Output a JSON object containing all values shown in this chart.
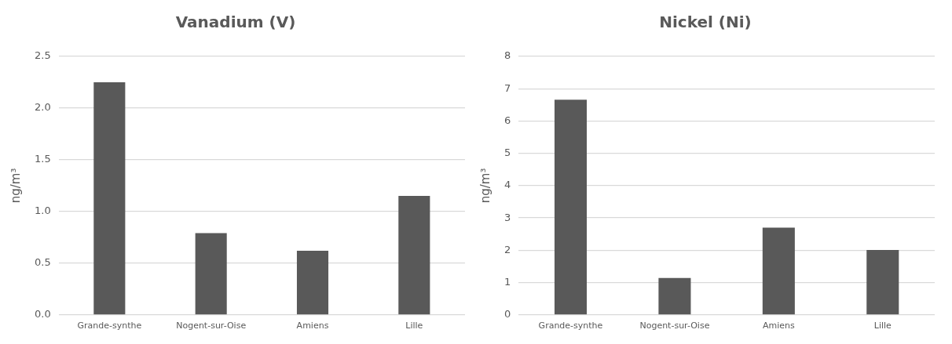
{
  "chart_data": [
    {
      "type": "bar",
      "title": "Vanadium (V)",
      "ylabel": "ng/m³",
      "categories": [
        "Grande-synthe",
        "Nogent-sur-Oise",
        "Amiens",
        "Lille"
      ],
      "values": [
        2.25,
        0.79,
        0.62,
        1.15
      ],
      "color": "#595959",
      "ylim": [
        0,
        2.5
      ],
      "yticks": [
        {
          "value": 0,
          "label": "0.0"
        },
        0.5,
        {
          "value": 1,
          "label": "1.0"
        },
        1.5,
        {
          "value": 2,
          "label": "2.0"
        },
        2.5
      ],
      "grid": "y",
      "legend": false
    },
    {
      "type": "bar",
      "title": "Nickel (Ni)",
      "ylabel": "ng/m³",
      "categories": [
        "Grande-synthe",
        "Nogent-sur-Oise",
        "Amiens",
        "Lille"
      ],
      "values": [
        6.66,
        1.14,
        2.7,
        2.01
      ],
      "color": "#595959",
      "ylim": [
        0,
        8
      ],
      "yticks": [
        0,
        1,
        2,
        3,
        4,
        5,
        6,
        7,
        8
      ],
      "grid": "y",
      "legend": false
    }
  ]
}
